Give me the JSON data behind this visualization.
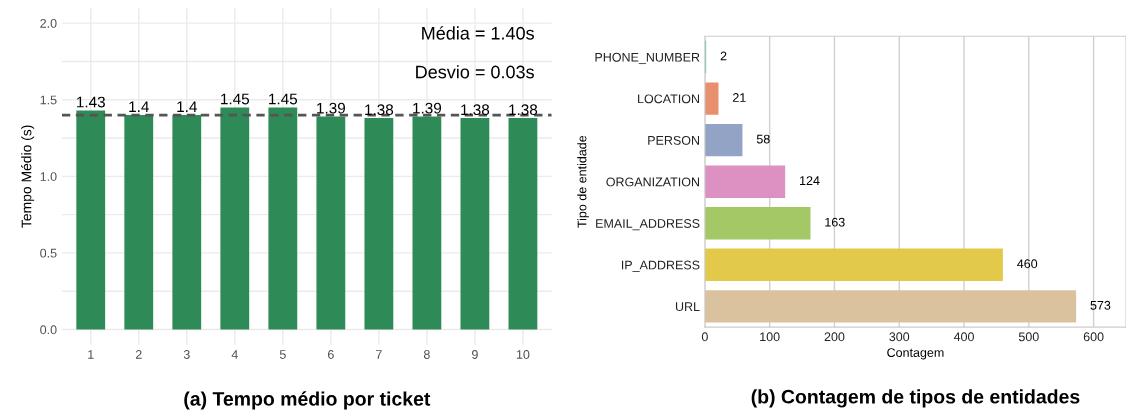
{
  "chart_data": [
    {
      "type": "bar",
      "title": "(a) Tempo médio por ticket",
      "ylabel": "Tempo Médio (s)",
      "categories": [
        "1",
        "2",
        "3",
        "4",
        "5",
        "6",
        "7",
        "8",
        "9",
        "10"
      ],
      "values": [
        1.43,
        1.4,
        1.4,
        1.45,
        1.45,
        1.39,
        1.38,
        1.39,
        1.38,
        1.38
      ],
      "color": "#2e8b57",
      "ylim": [
        -0.1,
        2.1
      ],
      "yticks": [
        {
          "value": 0,
          "label": "0.0"
        },
        {
          "value": 0.25,
          "label": null
        },
        0.5,
        {
          "value": 0.75,
          "label": null
        },
        {
          "value": 1,
          "label": "1.0"
        },
        {
          "value": 1.25,
          "label": null
        },
        1.5,
        {
          "value": 1.75,
          "label": null
        },
        {
          "value": 2,
          "label": "2.0"
        }
      ],
      "ref_lines": [
        {
          "axis": "y",
          "value": 1.4,
          "color": "#555555",
          "line_style": "dashed"
        }
      ],
      "annotations": [
        "Média = 1.40s",
        "Desvio = 0.03s"
      ],
      "data_labels": true,
      "grid": true
    },
    {
      "type": "bar",
      "orientation": "horizontal",
      "title": "(b) Contagem de tipos de entidades",
      "xlabel": "Contagem",
      "ylabel": "Tipo de entidade",
      "categories": [
        "PHONE_NUMBER",
        "LOCATION",
        "PERSON",
        "ORGANIZATION",
        "EMAIL_ADDRESS",
        "IP_ADDRESS",
        "URL"
      ],
      "values": [
        2,
        21,
        58,
        124,
        163,
        460,
        573
      ],
      "colors": [
        "#72c2a6",
        "#e8906e",
        "#93a3c5",
        "#dc91c2",
        "#a3c865",
        "#e3c94a",
        "#dbc29e"
      ],
      "xlim": [
        0,
        650
      ],
      "xticks": [
        0,
        100,
        200,
        300,
        400,
        500,
        600
      ],
      "data_labels": true,
      "grid": "x"
    }
  ]
}
